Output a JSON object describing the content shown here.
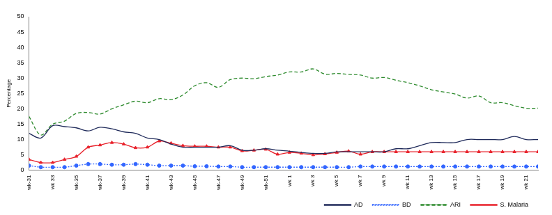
{
  "chart_data": {
    "type": "line",
    "y_label": "Percentage",
    "categories": [
      "wk-31",
      null,
      "wk 33",
      null,
      "wk-35",
      null,
      "wk-37",
      null,
      "wk-39",
      null,
      "wk-41",
      null,
      "wk-43",
      null,
      "wk-45",
      null,
      "wk-47",
      null,
      "wk-49",
      null,
      "wk-51",
      null,
      "wk 1",
      null,
      "wk 3",
      null,
      "wk 5",
      null,
      "wk 7",
      null,
      "wk 9",
      null,
      "wk 11",
      null,
      "wk 13",
      null,
      "wk 15",
      null,
      "wk 17",
      null,
      "wk 19",
      null,
      "wk 21",
      null
    ],
    "series": [
      {
        "name": "AD",
        "color": "#1f2a5a",
        "line_style": "solid",
        "marker": "none",
        "values": [
          12,
          10.5,
          14.5,
          14.2,
          13.8,
          12.8,
          14,
          13.5,
          12.5,
          12,
          10.5,
          10,
          8.5,
          7.5,
          7.5,
          7.5,
          7.5,
          8,
          6.5,
          6.5,
          7,
          6.5,
          6.2,
          5.8,
          5.5,
          5.5,
          6,
          6,
          6,
          6,
          6,
          7,
          7,
          8,
          9,
          9,
          9,
          10,
          10,
          10,
          10,
          11,
          10,
          10
        ]
      },
      {
        "name": "BD",
        "color": "#3366ff",
        "line_style": "dotted",
        "marker": "circle",
        "values": [
          1.5,
          1,
          1,
          1,
          1.5,
          2,
          2,
          1.8,
          1.8,
          2,
          1.8,
          1.5,
          1.5,
          1.5,
          1.3,
          1.3,
          1.2,
          1.2,
          1,
          1,
          1,
          1,
          1,
          1,
          1,
          1,
          1,
          1,
          1.2,
          1.2,
          1.2,
          1.2,
          1.2,
          1.2,
          1.2,
          1.2,
          1.2,
          1.2,
          1.2,
          1.2,
          1.2,
          1.2,
          1.2,
          1.2
        ]
      },
      {
        "name": "ARI",
        "color": "#2e8b2e",
        "line_style": "dashed",
        "marker": "none",
        "values": [
          17.5,
          11.5,
          15,
          16,
          18.5,
          18.8,
          18.3,
          20,
          21.3,
          22.5,
          22,
          23.3,
          23,
          24.5,
          27.5,
          28.5,
          27,
          29.5,
          30,
          29.8,
          30.5,
          31,
          32,
          32,
          33,
          31.3,
          31.5,
          31.2,
          31,
          30,
          30.2,
          29.3,
          28.5,
          27.5,
          26.2,
          25.5,
          24.8,
          23.5,
          24.2,
          22,
          22,
          21,
          20.2,
          20.2
        ]
      },
      {
        "name": "S. Malaria",
        "color": "#e8202a",
        "line_style": "solid",
        "marker": "triangle",
        "values": [
          3.5,
          2.5,
          2.5,
          3.5,
          4.5,
          7.5,
          8.2,
          9,
          8.5,
          7.3,
          7.5,
          9.5,
          8.8,
          8,
          7.8,
          7.8,
          7.5,
          7.5,
          6.3,
          6.5,
          6.8,
          5.2,
          5.8,
          5.5,
          5,
          5.3,
          5.8,
          6.2,
          5.2,
          6,
          6,
          6,
          6,
          6,
          6,
          6,
          6,
          6,
          6,
          6,
          6,
          6,
          6,
          6
        ]
      }
    ],
    "ylim": [
      0,
      50
    ],
    "yticks": [
      0,
      5,
      10,
      15,
      20,
      25,
      30,
      35,
      40,
      45,
      50
    ],
    "grid": false,
    "legend": "bottom"
  }
}
